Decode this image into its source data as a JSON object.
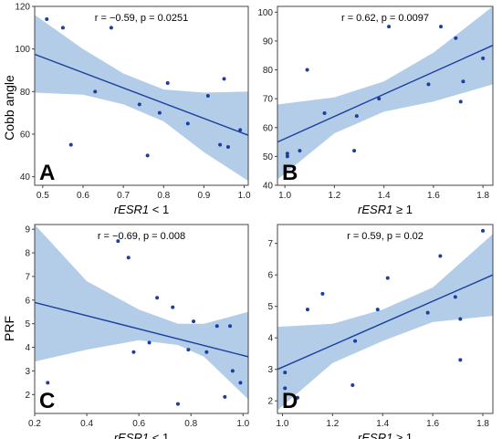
{
  "figure": {
    "y_labels": {
      "top": "Cobb angle",
      "bottom": "PRF"
    }
  },
  "chart_data": [
    {
      "panel": "A",
      "type": "scatter",
      "stats": "r = −0.59, p = 0.0251",
      "xlabel_italic": "rESR1",
      "xlabel_rest": " < 1",
      "xlim": [
        0.48,
        1.01
      ],
      "ylim": [
        36,
        120
      ],
      "xticks": [
        "0.5",
        "0.6",
        "0.7",
        "0.8",
        "0.9",
        "1.0"
      ],
      "xtick_values": [
        0.5,
        0.6,
        0.7,
        0.8,
        0.9,
        1.0
      ],
      "yticks": [
        "40",
        "60",
        "80",
        "100",
        "120"
      ],
      "ytick_values": [
        40,
        60,
        80,
        100,
        120
      ],
      "points": {
        "x": [
          0.51,
          0.55,
          0.57,
          0.63,
          0.67,
          0.74,
          0.76,
          0.79,
          0.81,
          0.86,
          0.91,
          0.94,
          0.95,
          0.96,
          0.99
        ],
        "y": [
          114,
          110,
          55,
          80,
          110,
          74,
          50,
          70,
          84,
          65,
          78,
          55,
          86,
          54,
          62
        ]
      },
      "fit": {
        "x": [
          0.48,
          1.01
        ],
        "y": [
          97.5,
          59.5
        ]
      },
      "ci_upper": {
        "x": [
          0.48,
          0.6,
          0.7,
          0.8,
          0.9,
          1.01
        ],
        "y": [
          116,
          100,
          88.5,
          81,
          79.5,
          80
        ]
      },
      "ci_lower": {
        "x": [
          0.48,
          0.6,
          0.7,
          0.8,
          0.9,
          1.01
        ],
        "y": [
          79.5,
          78.5,
          74,
          66,
          51.5,
          38
        ]
      },
      "color": "#1a3fa0",
      "band_color": "#b3cde9"
    },
    {
      "panel": "B",
      "type": "scatter",
      "stats": "r = 0.62, p = 0.0097",
      "xlabel_italic": "rESR1",
      "xlabel_rest": " ≥ 1",
      "xlim": [
        0.97,
        1.84
      ],
      "ylim": [
        40,
        102
      ],
      "xticks": [
        "1.0",
        "1.2",
        "1.4",
        "1.6",
        "1.8"
      ],
      "xtick_values": [
        1.0,
        1.2,
        1.4,
        1.6,
        1.8
      ],
      "yticks": [
        "40",
        "50",
        "60",
        "70",
        "80",
        "90",
        "100"
      ],
      "ytick_values": [
        40,
        50,
        60,
        70,
        80,
        90,
        100
      ],
      "points": {
        "x": [
          1.01,
          1.01,
          1.06,
          1.09,
          1.16,
          1.28,
          1.29,
          1.38,
          1.42,
          1.58,
          1.63,
          1.69,
          1.71,
          1.72,
          1.8
        ],
        "y": [
          51,
          50,
          52,
          80,
          65,
          52,
          64,
          70,
          95,
          75,
          95,
          91,
          69,
          76,
          84
        ]
      },
      "fit": {
        "x": [
          0.97,
          1.84
        ],
        "y": [
          55,
          88.5
        ]
      },
      "ci_upper": {
        "x": [
          0.97,
          1.2,
          1.4,
          1.6,
          1.84
        ],
        "y": [
          68,
          70.5,
          76,
          86,
          102
        ]
      },
      "ci_lower": {
        "x": [
          0.97,
          1.2,
          1.4,
          1.6,
          1.84
        ],
        "y": [
          42,
          58,
          65.5,
          69,
          75
        ]
      },
      "color": "#1a3fa0",
      "band_color": "#b3cde9"
    },
    {
      "panel": "C",
      "type": "scatter",
      "stats": "r = −0.69, p = 0.008",
      "xlabel_italic": "rESR1",
      "xlabel_rest": " < 1",
      "xlim": [
        0.2,
        1.02
      ],
      "ylim": [
        1.2,
        9.2
      ],
      "xticks": [
        "0.2",
        "0.4",
        "0.6",
        "0.8",
        "1.0"
      ],
      "xtick_values": [
        0.2,
        0.4,
        0.6,
        0.8,
        1.0
      ],
      "yticks": [
        "2",
        "3",
        "4",
        "5",
        "6",
        "7",
        "8",
        "9"
      ],
      "ytick_values": [
        2,
        3,
        4,
        5,
        6,
        7,
        8,
        9
      ],
      "points": {
        "x": [
          0.25,
          0.52,
          0.56,
          0.58,
          0.64,
          0.67,
          0.73,
          0.75,
          0.79,
          0.81,
          0.86,
          0.9,
          0.93,
          0.95,
          0.96,
          0.99
        ],
        "y": [
          2.5,
          8.5,
          7.8,
          3.8,
          4.2,
          6.1,
          5.7,
          1.6,
          3.9,
          5.1,
          3.8,
          4.9,
          1.9,
          4.9,
          3.0,
          2.5
        ]
      },
      "fit": {
        "x": [
          0.2,
          1.02
        ],
        "y": [
          5.9,
          3.6
        ]
      },
      "ci_upper": {
        "x": [
          0.2,
          0.4,
          0.6,
          0.75,
          0.85,
          1.02
        ],
        "y": [
          9.2,
          6.8,
          5.6,
          5.0,
          5.0,
          5.5
        ]
      },
      "ci_lower": {
        "x": [
          0.2,
          0.4,
          0.6,
          0.75,
          0.85,
          1.02
        ],
        "y": [
          3.4,
          3.9,
          4.3,
          4.1,
          3.6,
          1.8
        ]
      },
      "color": "#1a3fa0",
      "band_color": "#b3cde9"
    },
    {
      "panel": "D",
      "type": "scatter",
      "stats": "r = 0.59, p = 0.02",
      "xlabel_italic": "rESR1",
      "xlabel_rest": " ≥ 1",
      "xlim": [
        0.98,
        1.84
      ],
      "ylim": [
        1.6,
        7.6
      ],
      "xticks": [
        "1.0",
        "1.2",
        "1.4",
        "1.6",
        "1.8"
      ],
      "xtick_values": [
        1.0,
        1.2,
        1.4,
        1.6,
        1.8
      ],
      "yticks": [
        "2",
        "3",
        "4",
        "5",
        "6",
        "7"
      ],
      "ytick_values": [
        2,
        3,
        4,
        5,
        6,
        7
      ],
      "points": {
        "x": [
          1.01,
          1.01,
          1.06,
          1.1,
          1.16,
          1.28,
          1.29,
          1.38,
          1.42,
          1.58,
          1.63,
          1.69,
          1.71,
          1.71,
          1.8
        ],
        "y": [
          2.9,
          2.4,
          2.1,
          4.9,
          5.4,
          2.5,
          3.9,
          4.9,
          5.9,
          4.8,
          6.6,
          5.3,
          4.6,
          3.3,
          7.4
        ]
      },
      "fit": {
        "x": [
          0.98,
          1.84
        ],
        "y": [
          3.0,
          6.0
        ]
      },
      "ci_upper": {
        "x": [
          0.98,
          1.2,
          1.4,
          1.6,
          1.84
        ],
        "y": [
          4.35,
          4.45,
          4.9,
          5.6,
          7.3
        ]
      },
      "ci_lower": {
        "x": [
          0.98,
          1.2,
          1.4,
          1.6,
          1.84
        ],
        "y": [
          1.7,
          3.2,
          3.9,
          4.5,
          4.7
        ]
      },
      "color": "#1a3fa0",
      "band_color": "#b3cde9"
    }
  ]
}
